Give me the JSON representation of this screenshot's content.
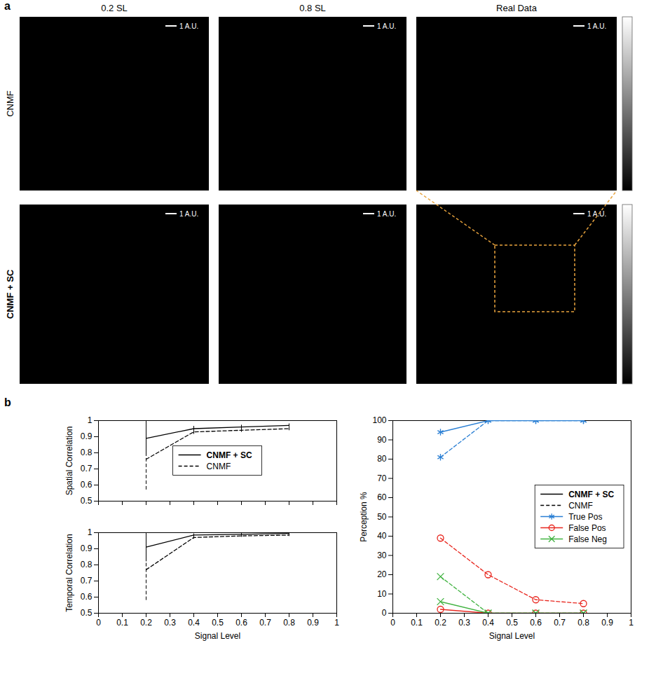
{
  "panel_a": {
    "letter": "a",
    "columns": [
      "0.2 SL",
      "0.8 SL",
      "Real Data"
    ],
    "rows": [
      "CNMF",
      "CNMF + SC"
    ],
    "scale_bar_label": "1 A.U."
  },
  "chart_data": [
    {
      "panel": "b",
      "type": "line",
      "ylabel": "Spatial Correlation",
      "x": [
        0.2,
        0.4,
        0.6,
        0.8
      ],
      "xlim": [
        0,
        1
      ],
      "xticks": [
        0,
        0.1,
        0.2,
        0.3,
        0.4,
        0.5,
        0.6,
        0.7,
        0.8,
        0.9,
        1
      ],
      "ylim": [
        0.5,
        1
      ],
      "yticks": [
        0.5,
        0.6,
        0.7,
        0.8,
        0.9,
        1
      ],
      "tick_labels": "y",
      "legend": "center",
      "series": [
        {
          "name": "CNMF + SC",
          "color": "#000000",
          "line_style": "solid",
          "values": [
            0.89,
            0.95,
            0.96,
            0.97
          ],
          "errors": [
            0.11,
            0.015,
            0.012,
            0.01
          ]
        },
        {
          "name": "CNMF",
          "color": "#000000",
          "line_style": "dashed",
          "values": [
            0.76,
            0.93,
            0.94,
            0.95
          ],
          "errors": [
            0.19,
            0.015,
            0.012,
            0.012
          ]
        }
      ]
    },
    {
      "type": "line",
      "xlabel": "Signal Level",
      "ylabel": "Temporal Correlation",
      "x": [
        0.2,
        0.4,
        0.6,
        0.8
      ],
      "xlim": [
        0,
        1
      ],
      "xticks": [
        0,
        0.1,
        0.2,
        0.3,
        0.4,
        0.5,
        0.6,
        0.7,
        0.8,
        0.9,
        1
      ],
      "ylim": [
        0.5,
        1
      ],
      "yticks": [
        0.5,
        0.6,
        0.7,
        0.8,
        0.9,
        1
      ],
      "series": [
        {
          "name": "CNMF + SC",
          "color": "#000000",
          "line_style": "solid",
          "values": [
            0.91,
            0.985,
            0.99,
            0.995
          ],
          "errors": [
            0.09,
            0.008,
            0.006,
            0.005
          ]
        },
        {
          "name": "CNMF",
          "color": "#000000",
          "line_style": "dashed",
          "values": [
            0.77,
            0.97,
            0.98,
            0.985
          ],
          "errors": [
            0.19,
            0.01,
            0.008,
            0.008
          ]
        }
      ]
    },
    {
      "type": "line",
      "xlabel": "Signal Level",
      "ylabel": "Perception %",
      "x": [
        0.2,
        0.4,
        0.6,
        0.8
      ],
      "xlim": [
        0,
        1
      ],
      "xticks": [
        0,
        0.1,
        0.2,
        0.3,
        0.4,
        0.5,
        0.6,
        0.7,
        0.8,
        0.9,
        1
      ],
      "ylim": [
        0,
        100
      ],
      "yticks": [
        0,
        10,
        20,
        30,
        40,
        50,
        60,
        70,
        80,
        90,
        100
      ],
      "legend": "center right",
      "methods": [
        {
          "name": "CNMF + SC",
          "line_style": "solid"
        },
        {
          "name": "CNMF",
          "line_style": "dashed"
        }
      ],
      "series": [
        {
          "name": "True Pos",
          "method": "CNMF + SC",
          "color": "#2a7fd4",
          "marker": "asterisk",
          "line_style": "solid",
          "values": [
            94,
            100,
            100,
            100
          ]
        },
        {
          "name": "True Pos",
          "method": "CNMF",
          "color": "#2a7fd4",
          "marker": "asterisk",
          "line_style": "dashed",
          "values": [
            81,
            100,
            100,
            100
          ]
        },
        {
          "name": "False Pos",
          "method": "CNMF + SC",
          "color": "#e8261e",
          "marker": "circle",
          "line_style": "solid",
          "values": [
            2,
            0,
            0,
            0
          ]
        },
        {
          "name": "False Pos",
          "method": "CNMF",
          "color": "#e8261e",
          "marker": "circle",
          "line_style": "dashed",
          "values": [
            39,
            20,
            7,
            5
          ]
        },
        {
          "name": "False Neg",
          "method": "CNMF + SC",
          "color": "#42b342",
          "marker": "x",
          "line_style": "solid",
          "values": [
            6,
            0,
            0,
            0
          ]
        },
        {
          "name": "False Neg",
          "method": "CNMF",
          "color": "#42b342",
          "marker": "x",
          "line_style": "dashed",
          "values": [
            19,
            0,
            0,
            0
          ]
        }
      ]
    }
  ]
}
